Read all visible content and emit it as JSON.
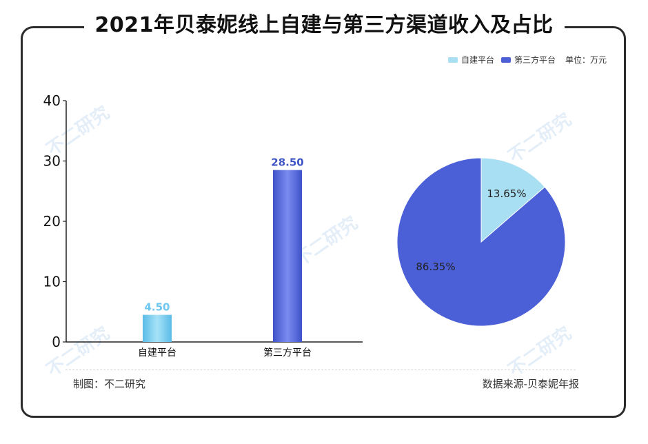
{
  "title": "2021年贝泰妮线上自建与第三方渠道收入及占比",
  "legend": {
    "items": [
      {
        "label": "自建平台",
        "color": "#a9dff2"
      },
      {
        "label": "第三方平台",
        "color": "#4b5fd6"
      }
    ],
    "unit": "单位：万元"
  },
  "footer": {
    "maker": "制图：不二研究",
    "source": "数据来源-贝泰妮年报"
  },
  "watermark_text": "不二研究",
  "chart_data": [
    {
      "type": "bar",
      "categories": [
        "自建平台",
        "第三方平台"
      ],
      "values": [
        4.5,
        28.5
      ],
      "value_labels": [
        "4.50",
        "28.50"
      ],
      "ylim": [
        0,
        40
      ],
      "yticks": [
        0,
        10,
        20,
        30,
        40
      ],
      "colors": [
        "#6cc6ee",
        "#4b5fd6"
      ],
      "label_colors": [
        "#6cc6ee",
        "#3f55c4"
      ]
    },
    {
      "type": "pie",
      "labels": [
        "自建平台",
        "第三方平台"
      ],
      "values": [
        13.65,
        86.35
      ],
      "value_labels": [
        "13.65%",
        "86.35%"
      ],
      "colors": [
        "#a9dff2",
        "#4b5fd6"
      ]
    }
  ]
}
